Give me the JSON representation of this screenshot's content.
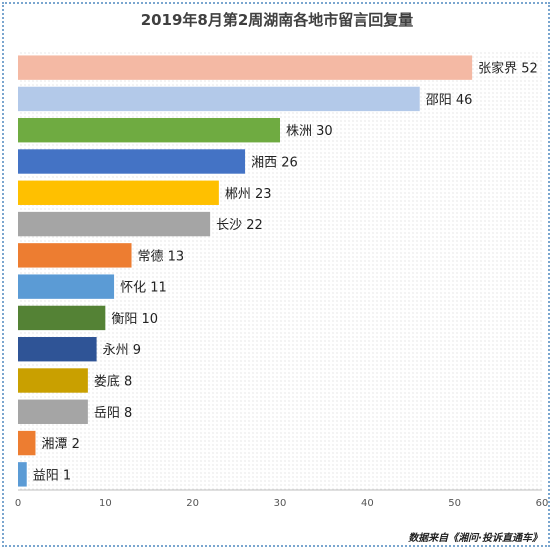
{
  "title": "2019年8月第2周湖南各地市留言回复量",
  "source_note": "数据来自《湘问·投诉直通车》",
  "chart_data": {
    "type": "bar",
    "orientation": "horizontal",
    "title": "2019年8月第2周湖南各地市留言回复量",
    "xlabel": "",
    "ylabel": "",
    "xlim": [
      0,
      60
    ],
    "x_ticks": [
      "0",
      "10",
      "20",
      "30",
      "40",
      "50",
      "60"
    ],
    "grid": false,
    "legend": "none",
    "categories": [
      "张家界",
      "邵阳",
      "株洲",
      "湘西",
      "郴州",
      "长沙",
      "常德",
      "怀化",
      "衡阳",
      "永州",
      "娄底",
      "岳阳",
      "湘潭",
      "益阳"
    ],
    "values": [
      52,
      46,
      30,
      26,
      23,
      22,
      13,
      11,
      10,
      9,
      8,
      8,
      2,
      1
    ],
    "data_labels": [
      "张家界 52",
      "邵阳 46",
      "株洲 30",
      "湘西 26",
      "郴州 23",
      "长沙 22",
      "常德 13",
      "怀化 11",
      "衡阳 10",
      "永州 9",
      "娄底 8",
      "岳阳 8",
      "湘潭 2",
      "益阳 1"
    ],
    "colors": [
      "#f4b9a4",
      "#b3c9e9",
      "#6fab41",
      "#4473c5",
      "#ffc000",
      "#a5a5a5",
      "#ed7d31",
      "#5b9bd5",
      "#548235",
      "#2f5496",
      "#c9a000",
      "#a5a5a5",
      "#ed7d31",
      "#5b9bd5"
    ]
  }
}
